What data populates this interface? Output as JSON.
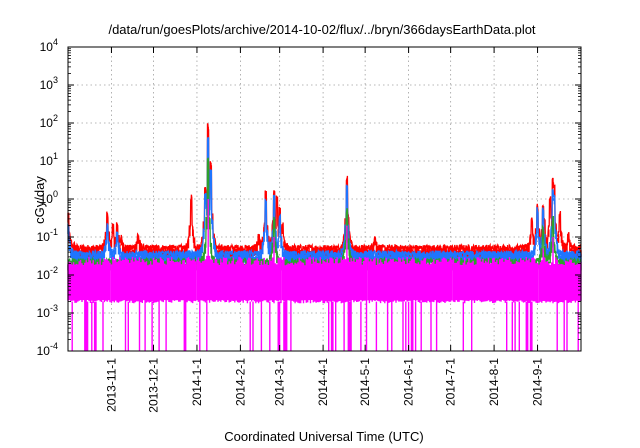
{
  "chart_data": {
    "type": "line",
    "title": "/data/run/goesPlots/archive/2014-10-02/flux/../bryn/366daysEarthData.plot",
    "xlabel": "Coordinated Universal Time (UTC)",
    "ylabel": "cGy/day",
    "y_scale": "log",
    "ylim": [
      0.0001,
      10000
    ],
    "y_ticks": [
      {
        "base": "10",
        "exp": "-4"
      },
      {
        "base": "10",
        "exp": "-3"
      },
      {
        "base": "10",
        "exp": "-2"
      },
      {
        "base": "10",
        "exp": "-1"
      },
      {
        "base": "10",
        "exp": "0"
      },
      {
        "base": "10",
        "exp": "1"
      },
      {
        "base": "10",
        "exp": "2"
      },
      {
        "base": "10",
        "exp": "3"
      },
      {
        "base": "10",
        "exp": "4"
      }
    ],
    "xlim": [
      "2013-10-01",
      "2014-10-02"
    ],
    "x_ticks": [
      "2013-11-1",
      "2013-12-1",
      "2014-1-1",
      "2014-2-1",
      "2014-3-1",
      "2014-4-1",
      "2014-5-1",
      "2014-6-1",
      "2014-7-1",
      "2014-8-1",
      "2014-9-1"
    ],
    "grid": true,
    "series": [
      {
        "color": "#ff0000",
        "baseline": 0.05,
        "points": [
          [
            "2013-10-01",
            0.4
          ],
          [
            "2013-10-05",
            0.06
          ],
          [
            "2013-10-29",
            0.4
          ],
          [
            "2013-11-02",
            0.2
          ],
          [
            "2013-11-05",
            0.22
          ],
          [
            "2013-11-08",
            0.1
          ],
          [
            "2013-11-20",
            0.11
          ],
          [
            "2013-12-28",
            1.1
          ],
          [
            "2014-01-07",
            2.0
          ],
          [
            "2014-01-09",
            80
          ],
          [
            "2014-01-11",
            8
          ],
          [
            "2014-02-14",
            0.1
          ],
          [
            "2014-02-19",
            1.5
          ],
          [
            "2014-02-25",
            1.5
          ],
          [
            "2014-02-27",
            1.0
          ],
          [
            "2014-03-01",
            0.5
          ],
          [
            "2014-03-03",
            0.2
          ],
          [
            "2014-04-18",
            3.5
          ],
          [
            "2014-04-19",
            0.4
          ],
          [
            "2014-05-08",
            0.1
          ],
          [
            "2014-08-28",
            0.3
          ],
          [
            "2014-09-01",
            0.6
          ],
          [
            "2014-09-05",
            0.6
          ],
          [
            "2014-09-06",
            0.25
          ],
          [
            "2014-09-10",
            1.0
          ],
          [
            "2014-09-12",
            3.2
          ],
          [
            "2014-09-13",
            2.0
          ],
          [
            "2014-09-17",
            0.4
          ],
          [
            "2014-09-23",
            0.12
          ]
        ]
      },
      {
        "color": "#1f75fe",
        "baseline": 0.035,
        "points": [
          [
            "2013-10-01",
            0.2
          ],
          [
            "2013-10-29",
            0.2
          ],
          [
            "2013-11-05",
            0.12
          ],
          [
            "2014-01-07",
            1.2
          ],
          [
            "2014-01-09",
            40
          ],
          [
            "2014-01-11",
            5
          ],
          [
            "2014-02-19",
            0.8
          ],
          [
            "2014-02-25",
            1.0
          ],
          [
            "2014-03-01",
            0.3
          ],
          [
            "2014-04-18",
            2.0
          ],
          [
            "2014-09-01",
            0.5
          ],
          [
            "2014-09-05",
            0.5
          ],
          [
            "2014-09-12",
            1.5
          ],
          [
            "2014-09-13",
            1.2
          ]
        ]
      },
      {
        "color": "#2ca02c",
        "baseline": 0.022,
        "points": [
          [
            "2014-01-09",
            10
          ],
          [
            "2014-02-25",
            0.3
          ],
          [
            "2014-04-18",
            0.5
          ],
          [
            "2014-09-05",
            0.15
          ],
          [
            "2014-09-12",
            0.3
          ]
        ]
      },
      {
        "color": "#ff00ff",
        "baseline": 0.003,
        "baseline_range": [
          0.002,
          0.03
        ],
        "points": [
          [
            "2014-01-09",
            1.0
          ],
          [
            "2014-02-25",
            0.1
          ],
          [
            "2014-04-18",
            0.2
          ],
          [
            "2014-09-05",
            0.05
          ],
          [
            "2014-09-12",
            0.1
          ]
        ]
      }
    ]
  }
}
